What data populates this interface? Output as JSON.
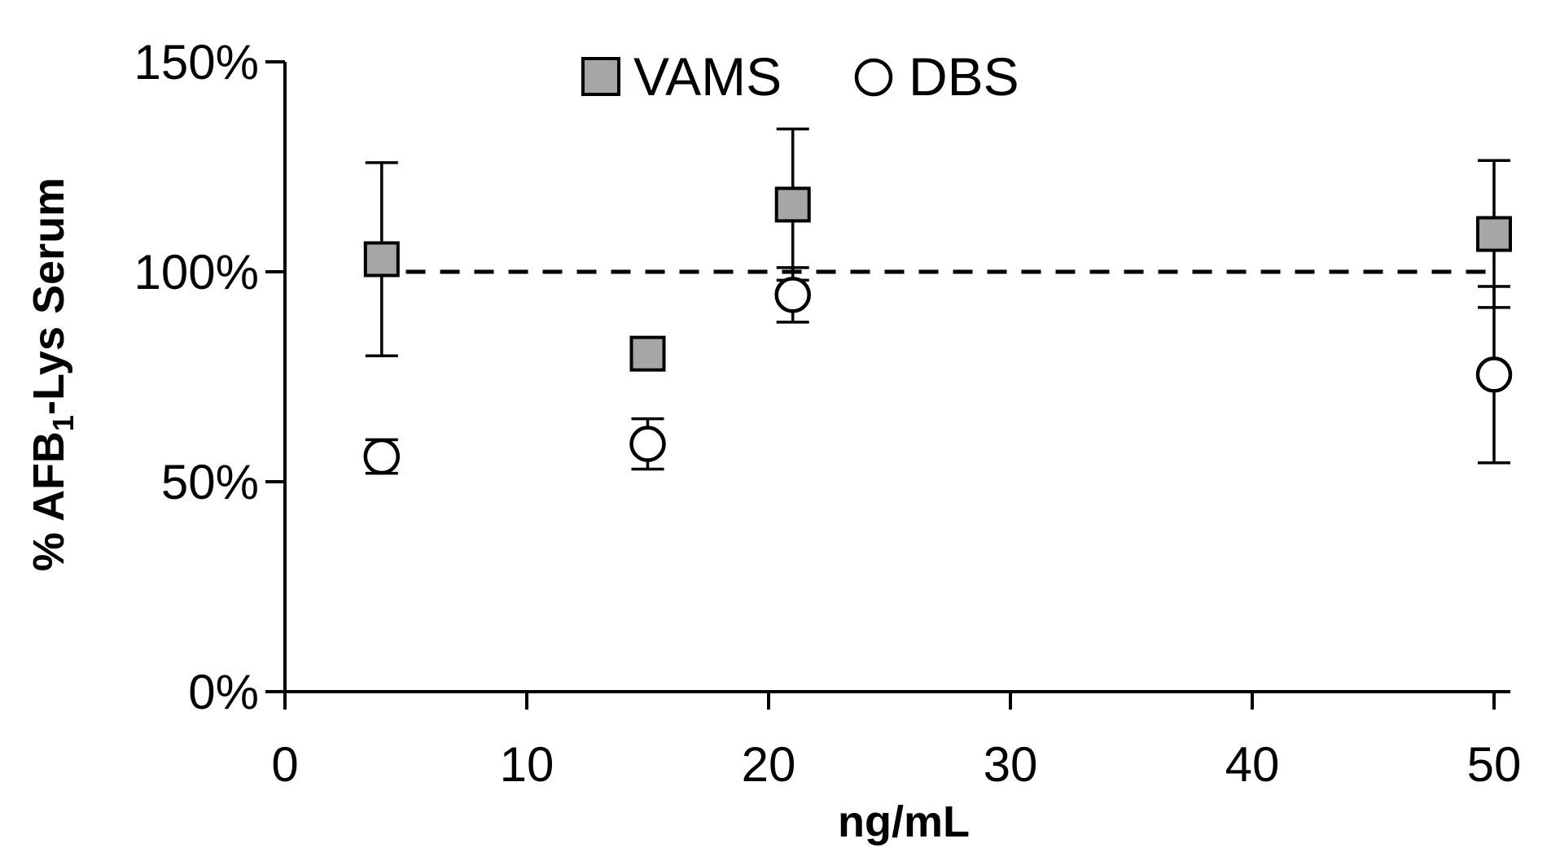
{
  "chart_data": {
    "type": "scatter",
    "title": "",
    "xlabel": "ng/mL",
    "ylabel": "% AFB1-Lys Serum",
    "ylabel_parts": {
      "pre": "% AFB",
      "sub": "1",
      "post": "-Lys Serum"
    },
    "xlim": [
      0,
      50
    ],
    "ylim": [
      0,
      150
    ],
    "x_ticks": [
      "0",
      "10",
      "20",
      "30",
      "40",
      "50"
    ],
    "x_tick_values": [
      0,
      10,
      20,
      30,
      40,
      50
    ],
    "y_ticks": [
      "0%",
      "50%",
      "100%",
      "150%"
    ],
    "y_tick_values": [
      0,
      50,
      100,
      150
    ],
    "reference_line": {
      "y": 100,
      "style": "dashed"
    },
    "legend_position": "top-center",
    "series": [
      {
        "name": "VAMS",
        "marker": "square",
        "color": "#a6a6a6",
        "points": [
          {
            "x": 4,
            "y": 103,
            "err": 23
          },
          {
            "x": 15,
            "y": 80.5,
            "err": 2
          },
          {
            "x": 21,
            "y": 116,
            "err": 18
          },
          {
            "x": 50,
            "y": 109,
            "err": 17.5
          }
        ]
      },
      {
        "name": "DBS",
        "marker": "circle",
        "color": "#ffffff",
        "points": [
          {
            "x": 4,
            "y": 56,
            "err": 4
          },
          {
            "x": 15,
            "y": 59,
            "err": 6
          },
          {
            "x": 21,
            "y": 94.5,
            "err": 6.5
          },
          {
            "x": 50,
            "y": 75.5,
            "err": 21
          }
        ]
      }
    ]
  }
}
